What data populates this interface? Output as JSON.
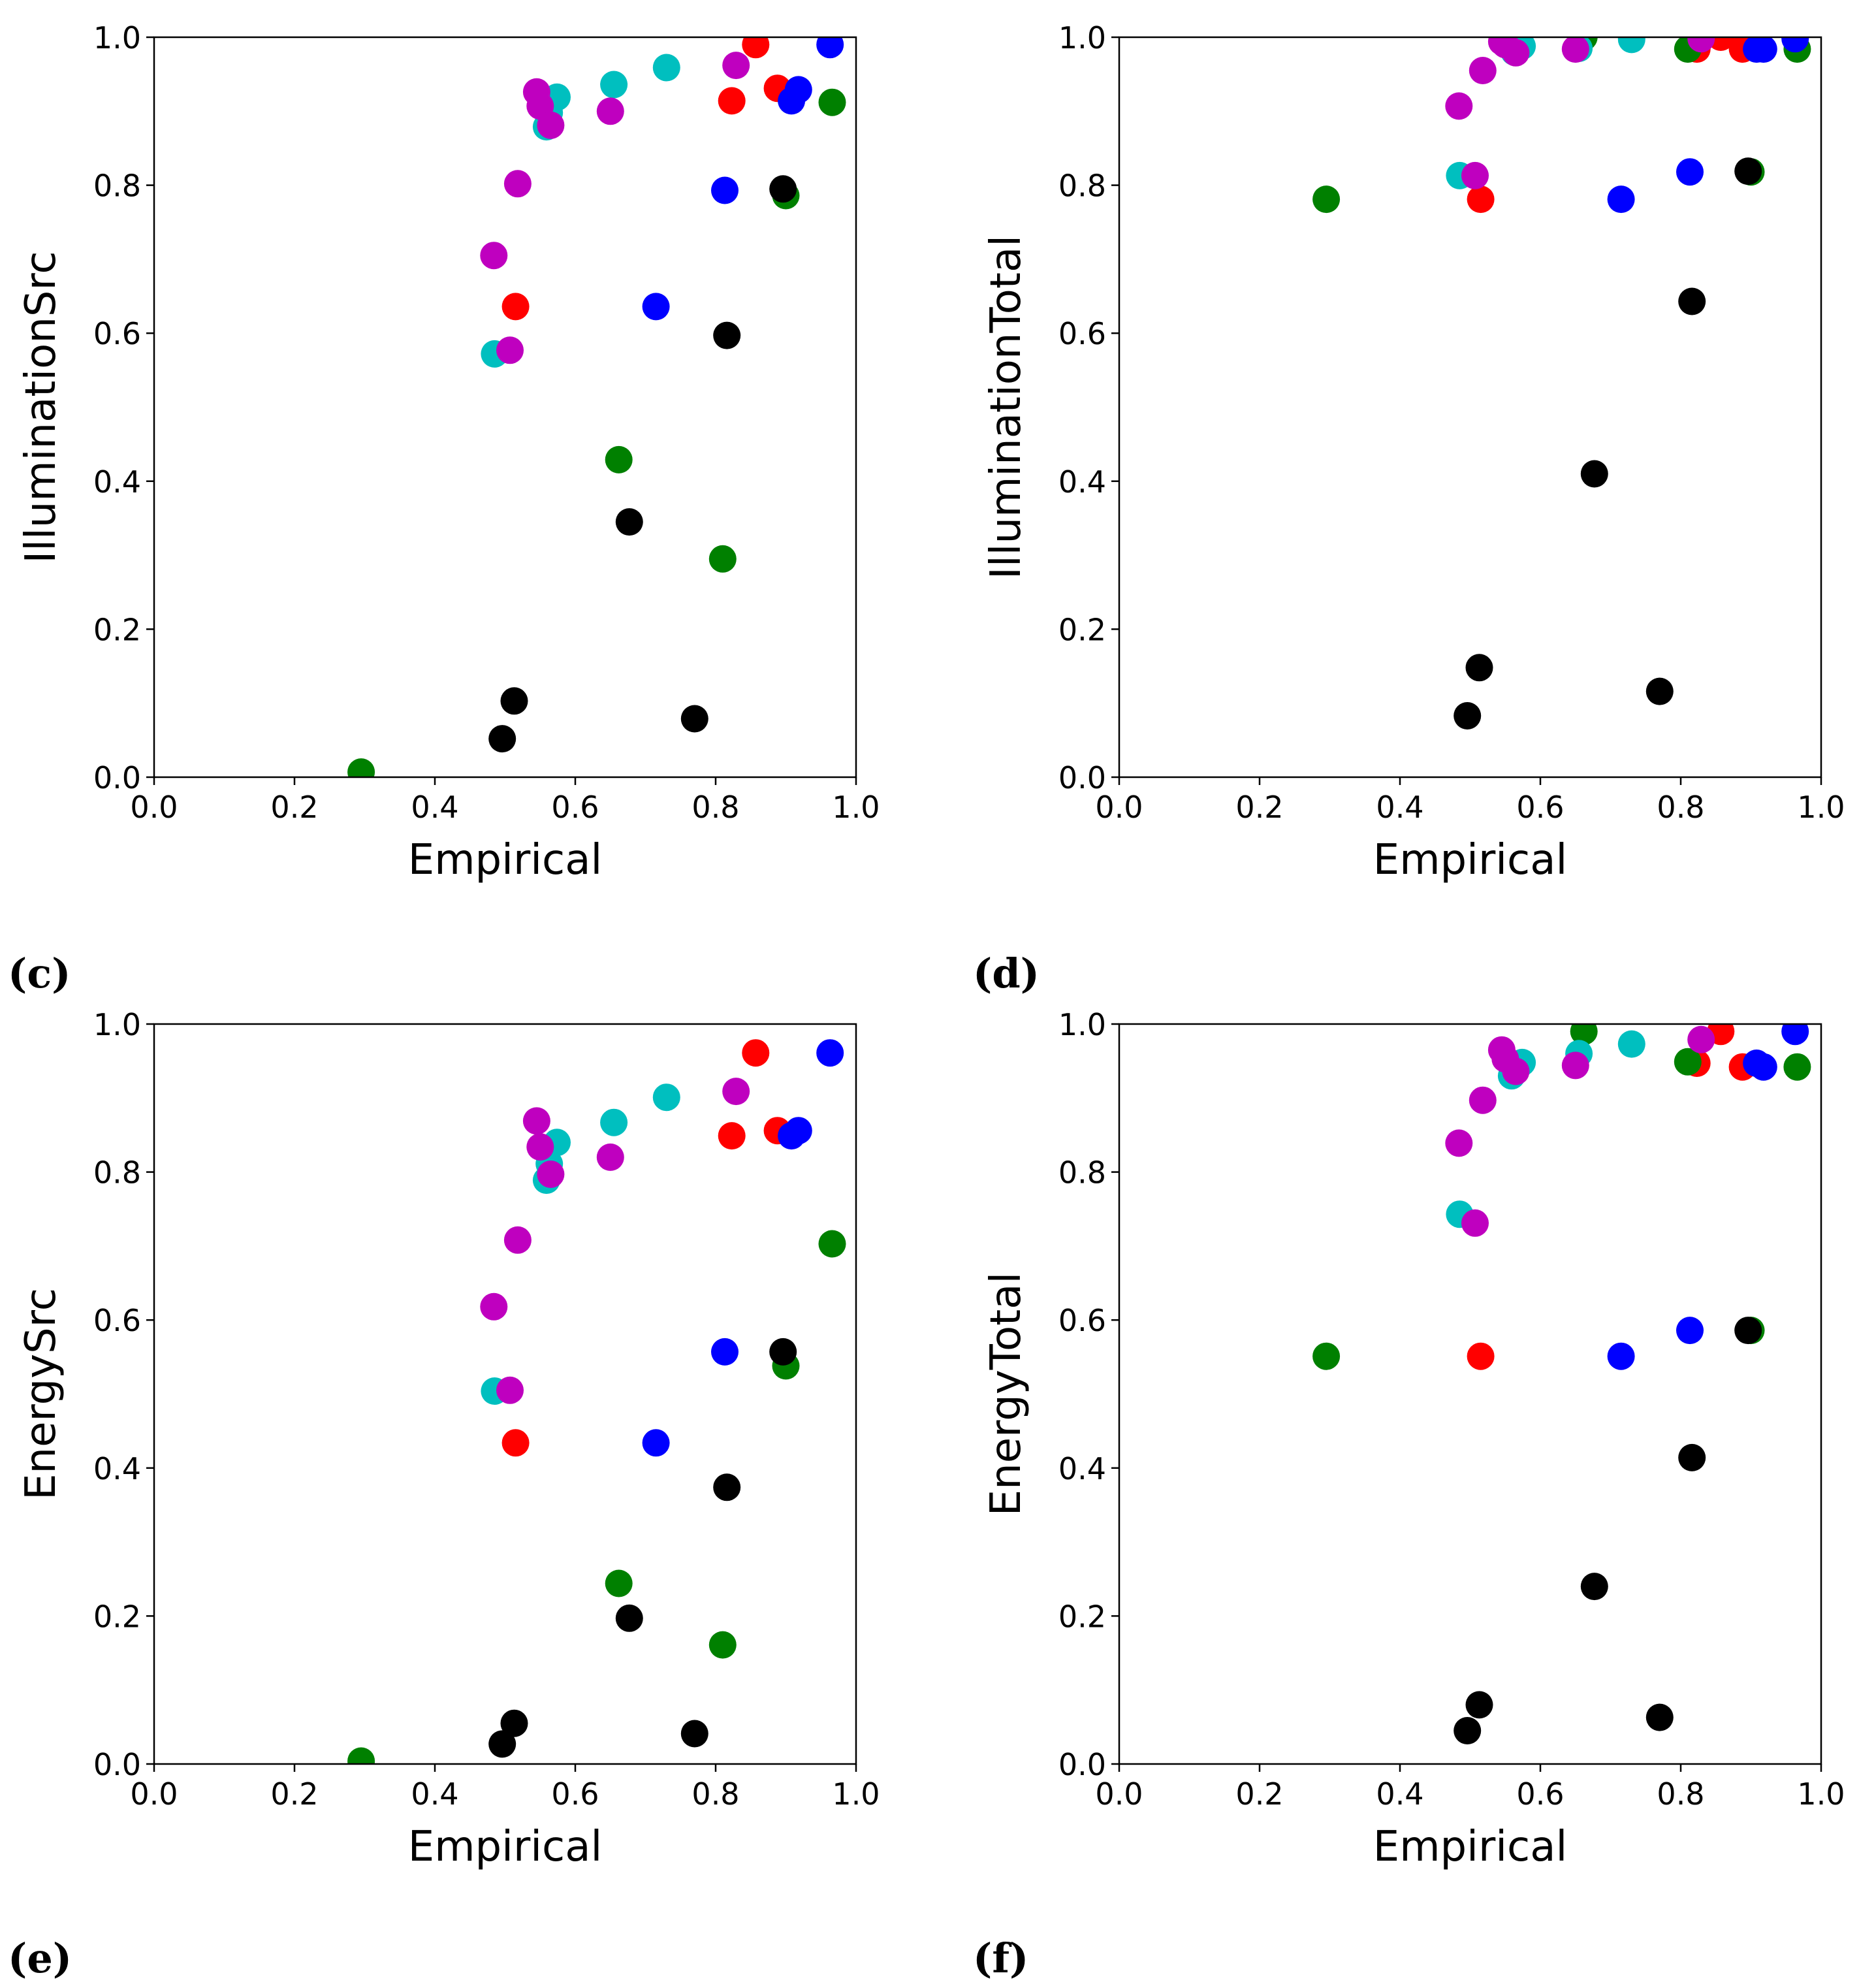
{
  "colors": {
    "red": "#ff0000",
    "green": "#008000",
    "blue": "#0000ff",
    "cyan": "#00bfbf",
    "magenta": "#bf00bf",
    "black": "#000000"
  },
  "chart_data": [
    {
      "type": "scatter",
      "label": "(c)",
      "xlabel": "Empirical",
      "ylabel": "IlluminationSrc",
      "xlim": [
        0.0,
        1.0
      ],
      "ylim": [
        0.0,
        1.0
      ],
      "xticks": [
        "0.0",
        "0.2",
        "0.4",
        "0.6",
        "0.8",
        "1.0"
      ],
      "yticks": [
        "0.0",
        "0.2",
        "0.4",
        "0.6",
        "0.8",
        "1.0"
      ],
      "series": [
        {
          "color": "red",
          "x": [
            0.515,
            0.823,
            0.857,
            0.888
          ],
          "y": [
            0.636,
            0.914,
            0.99,
            0.931
          ]
        },
        {
          "color": "green",
          "x": [
            0.295,
            0.662,
            0.81,
            0.9,
            0.966
          ],
          "y": [
            0.007,
            0.429,
            0.295,
            0.786,
            0.912
          ]
        },
        {
          "color": "blue",
          "x": [
            0.715,
            0.813,
            0.908,
            0.918,
            0.963
          ],
          "y": [
            0.636,
            0.793,
            0.914,
            0.929,
            0.99
          ]
        },
        {
          "color": "cyan",
          "x": [
            0.485,
            0.559,
            0.563,
            0.574,
            0.655,
            0.73
          ],
          "y": [
            0.572,
            0.879,
            0.898,
            0.919,
            0.936,
            0.959
          ]
        },
        {
          "color": "magenta",
          "x": [
            0.484,
            0.507,
            0.518,
            0.545,
            0.55,
            0.565,
            0.65,
            0.829
          ],
          "y": [
            0.705,
            0.577,
            0.802,
            0.926,
            0.907,
            0.881,
            0.9,
            0.962
          ]
        },
        {
          "color": "black",
          "x": [
            0.496,
            0.513,
            0.677,
            0.77,
            0.816,
            0.896
          ],
          "y": [
            0.052,
            0.103,
            0.345,
            0.079,
            0.597,
            0.795
          ]
        }
      ]
    },
    {
      "type": "scatter",
      "label": "(d)",
      "xlabel": "Empirical",
      "ylabel": "IlluminationTotal",
      "xlim": [
        0.0,
        1.0
      ],
      "ylim": [
        0.0,
        1.0
      ],
      "xticks": [
        "0.0",
        "0.2",
        "0.4",
        "0.6",
        "0.8",
        "1.0"
      ],
      "yticks": [
        "0.0",
        "0.2",
        "0.4",
        "0.6",
        "0.8",
        "1.0"
      ],
      "series": [
        {
          "color": "red",
          "x": [
            0.515,
            0.823,
            0.857,
            0.888
          ],
          "y": [
            0.781,
            0.984,
            1.0,
            0.984
          ]
        },
        {
          "color": "green",
          "x": [
            0.295,
            0.662,
            0.81,
            0.9,
            0.966
          ],
          "y": [
            0.781,
            1.0,
            0.984,
            0.818,
            0.984
          ]
        },
        {
          "color": "blue",
          "x": [
            0.715,
            0.813,
            0.908,
            0.918,
            0.963
          ],
          "y": [
            0.781,
            0.818,
            0.984,
            0.984,
            0.998
          ]
        },
        {
          "color": "cyan",
          "x": [
            0.485,
            0.559,
            0.563,
            0.574,
            0.655,
            0.73
          ],
          "y": [
            0.813,
            0.985,
            0.98,
            0.988,
            0.985,
            0.997
          ]
        },
        {
          "color": "magenta",
          "x": [
            0.484,
            0.507,
            0.518,
            0.545,
            0.55,
            0.565,
            0.65,
            0.829
          ],
          "y": [
            0.907,
            0.813,
            0.955,
            0.994,
            0.99,
            0.979,
            0.984,
            0.998
          ]
        },
        {
          "color": "black",
          "x": [
            0.496,
            0.513,
            0.677,
            0.77,
            0.816,
            0.896
          ],
          "y": [
            0.083,
            0.148,
            0.41,
            0.116,
            0.643,
            0.819
          ]
        }
      ]
    },
    {
      "type": "scatter",
      "label": "(e)",
      "xlabel": "Empirical",
      "ylabel": "EnergySrc",
      "xlim": [
        0.0,
        1.0
      ],
      "ylim": [
        0.0,
        1.0
      ],
      "xticks": [
        "0.0",
        "0.2",
        "0.4",
        "0.6",
        "0.8",
        "1.0"
      ],
      "yticks": [
        "0.0",
        "0.2",
        "0.4",
        "0.6",
        "0.8",
        "1.0"
      ],
      "series": [
        {
          "color": "red",
          "x": [
            0.515,
            0.823,
            0.857,
            0.888
          ],
          "y": [
            0.434,
            0.849,
            0.961,
            0.856
          ]
        },
        {
          "color": "green",
          "x": [
            0.295,
            0.662,
            0.81,
            0.9,
            0.966
          ],
          "y": [
            0.004,
            0.244,
            0.161,
            0.538,
            0.703
          ]
        },
        {
          "color": "blue",
          "x": [
            0.715,
            0.813,
            0.908,
            0.918,
            0.963
          ],
          "y": [
            0.434,
            0.557,
            0.849,
            0.856,
            0.961
          ]
        },
        {
          "color": "cyan",
          "x": [
            0.485,
            0.559,
            0.563,
            0.574,
            0.655,
            0.73
          ],
          "y": [
            0.504,
            0.789,
            0.811,
            0.84,
            0.867,
            0.901
          ]
        },
        {
          "color": "magenta",
          "x": [
            0.484,
            0.507,
            0.518,
            0.545,
            0.55,
            0.565,
            0.65,
            0.829
          ],
          "y": [
            0.618,
            0.505,
            0.708,
            0.869,
            0.834,
            0.797,
            0.82,
            0.909
          ]
        },
        {
          "color": "black",
          "x": [
            0.496,
            0.513,
            0.677,
            0.77,
            0.816,
            0.896
          ],
          "y": [
            0.027,
            0.055,
            0.197,
            0.041,
            0.374,
            0.557
          ]
        }
      ]
    },
    {
      "type": "scatter",
      "label": "(f)",
      "xlabel": "Empirical",
      "ylabel": "EnergyTotal",
      "xlim": [
        0.0,
        1.0
      ],
      "ylim": [
        0.0,
        1.0
      ],
      "xticks": [
        "0.0",
        "0.2",
        "0.4",
        "0.6",
        "0.8",
        "1.0"
      ],
      "yticks": [
        "0.0",
        "0.2",
        "0.4",
        "0.6",
        "0.8",
        "1.0"
      ],
      "series": [
        {
          "color": "red",
          "x": [
            0.515,
            0.823,
            0.857,
            0.888
          ],
          "y": [
            0.551,
            0.947,
            0.99,
            0.942
          ]
        },
        {
          "color": "green",
          "x": [
            0.295,
            0.662,
            0.81,
            0.9,
            0.966
          ],
          "y": [
            0.551,
            0.99,
            0.949,
            0.586,
            0.942
          ]
        },
        {
          "color": "blue",
          "x": [
            0.715,
            0.813,
            0.908,
            0.918,
            0.963
          ],
          "y": [
            0.551,
            0.586,
            0.947,
            0.942,
            0.99
          ]
        },
        {
          "color": "cyan",
          "x": [
            0.485,
            0.559,
            0.563,
            0.574,
            0.655,
            0.73
          ],
          "y": [
            0.743,
            0.93,
            0.94,
            0.948,
            0.96,
            0.973
          ]
        },
        {
          "color": "magenta",
          "x": [
            0.484,
            0.507,
            0.518,
            0.545,
            0.55,
            0.565,
            0.65,
            0.829
          ],
          "y": [
            0.839,
            0.731,
            0.897,
            0.965,
            0.953,
            0.936,
            0.944,
            0.979
          ]
        },
        {
          "color": "black",
          "x": [
            0.496,
            0.513,
            0.677,
            0.77,
            0.816,
            0.896
          ],
          "y": [
            0.045,
            0.08,
            0.24,
            0.063,
            0.414,
            0.586
          ]
        }
      ]
    }
  ]
}
